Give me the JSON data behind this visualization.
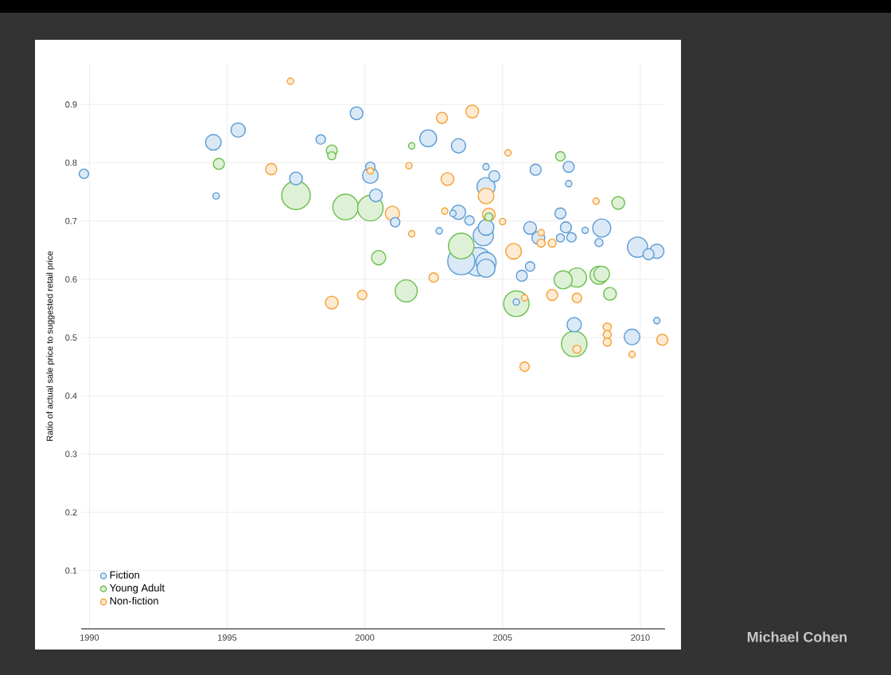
{
  "chart_data": {
    "type": "bubble",
    "ylabel": "Ratio of actual sale price to suggested retail price",
    "xlim": [
      1989.7,
      2010.9
    ],
    "ylim": [
      0,
      0.97
    ],
    "xticks": [
      1990,
      1995,
      2000,
      2005,
      2010
    ],
    "yticks": [
      0.1,
      0.2,
      0.3,
      0.4,
      0.5,
      0.6,
      0.7,
      0.8,
      0.9
    ],
    "grid": true,
    "legend": "bottom left",
    "relative": false,
    "annotations": [
      "Michael Cohen"
    ],
    "series": [
      {
        "name": "Fiction",
        "color": "#5b9bd5",
        "x": [
          1989.8,
          1994.6,
          1994.5,
          1995.4,
          1997.5,
          1998.4,
          1999.7,
          2000.2,
          2000.2,
          2000.4,
          2001.1,
          2002.3,
          2003.4,
          2003.4,
          2003.2,
          2003.8,
          2002.7,
          2003.5,
          2004.1,
          2004.4,
          2004.4,
          2004.3,
          2004.4,
          2004.4,
          2004.7,
          2004.4,
          2006.0,
          2005.7,
          2005.5,
          2006.2,
          2006.0,
          2006.3,
          2007.1,
          2007.4,
          2007.4,
          2007.1,
          2007.3,
          2007.5,
          2007.6,
          2008.0,
          2008.6,
          2008.5,
          2009.7,
          2009.9,
          2010.3,
          2010.6,
          2010.6
        ],
        "values": [
          0.781,
          0.743,
          0.835,
          0.856,
          0.773,
          0.84,
          0.885,
          0.793,
          0.778,
          0.744,
          0.698,
          0.842,
          0.829,
          0.715,
          0.713,
          0.701,
          0.683,
          0.631,
          0.63,
          0.629,
          0.619,
          0.675,
          0.689,
          0.759,
          0.777,
          0.793,
          0.622,
          0.606,
          0.561,
          0.788,
          0.688,
          0.671,
          0.671,
          0.793,
          0.764,
          0.713,
          0.689,
          0.672,
          0.522,
          0.684,
          0.688,
          0.663,
          0.501,
          0.655,
          0.643,
          0.648,
          0.529
        ],
        "sizes": [
          0.11,
          0.05,
          0.3,
          0.25,
          0.2,
          0.11,
          0.2,
          0.11,
          0.3,
          0.2,
          0.11,
          0.35,
          0.25,
          0.25,
          0.05,
          0.11,
          0.05,
          0.9,
          1.0,
          0.5,
          0.4,
          0.5,
          0.3,
          0.4,
          0.15,
          0.05,
          0.11,
          0.15,
          0.05,
          0.15,
          0.2,
          0.2,
          0.08,
          0.15,
          0.05,
          0.15,
          0.15,
          0.11,
          0.25,
          0.05,
          0.4,
          0.08,
          0.3,
          0.5,
          0.15,
          0.25,
          0.05
        ]
      },
      {
        "name": "Young Adult",
        "color": "#6abf4b",
        "x": [
          1994.7,
          1997.5,
          1998.8,
          1998.8,
          1999.3,
          2000.2,
          2000.5,
          2001.5,
          2001.7,
          2003.5,
          2004.5,
          2005.5,
          2007.1,
          2007.2,
          2007.7,
          2008.5,
          2008.6,
          2008.9,
          2009.2,
          2007.6
        ],
        "values": [
          0.798,
          0.744,
          0.821,
          0.812,
          0.724,
          0.722,
          0.637,
          0.58,
          0.829,
          0.657,
          0.707,
          0.558,
          0.811,
          0.599,
          0.603,
          0.607,
          0.609,
          0.575,
          0.731,
          0.489
        ],
        "sizes": [
          0.15,
          1.0,
          0.15,
          0.08,
          0.8,
          0.8,
          0.25,
          0.6,
          0.05,
          0.8,
          0.08,
          0.8,
          0.11,
          0.4,
          0.45,
          0.4,
          0.3,
          0.2,
          0.2,
          0.8
        ]
      },
      {
        "name": "Non-fiction",
        "color": "#f5a133",
        "x": [
          1996.6,
          1997.3,
          1998.8,
          1999.9,
          2000.2,
          2001.0,
          2002.5,
          2001.7,
          2001.6,
          2002.8,
          2003.9,
          2003.0,
          2002.9,
          2004.5,
          2004.4,
          2005.2,
          2005.0,
          2005.4,
          2005.8,
          2005.8,
          2006.4,
          2006.4,
          2006.8,
          2006.8,
          2007.7,
          2007.7,
          2008.4,
          2008.8,
          2008.8,
          2008.8,
          2009.7,
          2010.8
        ],
        "values": [
          0.789,
          0.94,
          0.56,
          0.573,
          0.786,
          0.713,
          0.603,
          0.678,
          0.795,
          0.877,
          0.888,
          0.772,
          0.717,
          0.711,
          0.743,
          0.817,
          0.699,
          0.648,
          0.568,
          0.45,
          0.68,
          0.662,
          0.662,
          0.573,
          0.568,
          0.48,
          0.734,
          0.518,
          0.505,
          0.492,
          0.471,
          0.496
        ],
        "sizes": [
          0.15,
          0.05,
          0.2,
          0.11,
          0.05,
          0.25,
          0.11,
          0.05,
          0.05,
          0.15,
          0.2,
          0.2,
          0.05,
          0.2,
          0.3,
          0.05,
          0.05,
          0.3,
          0.05,
          0.11,
          0.05,
          0.08,
          0.08,
          0.15,
          0.11,
          0.08,
          0.05,
          0.08,
          0.08,
          0.08,
          0.05,
          0.15
        ]
      }
    ]
  }
}
